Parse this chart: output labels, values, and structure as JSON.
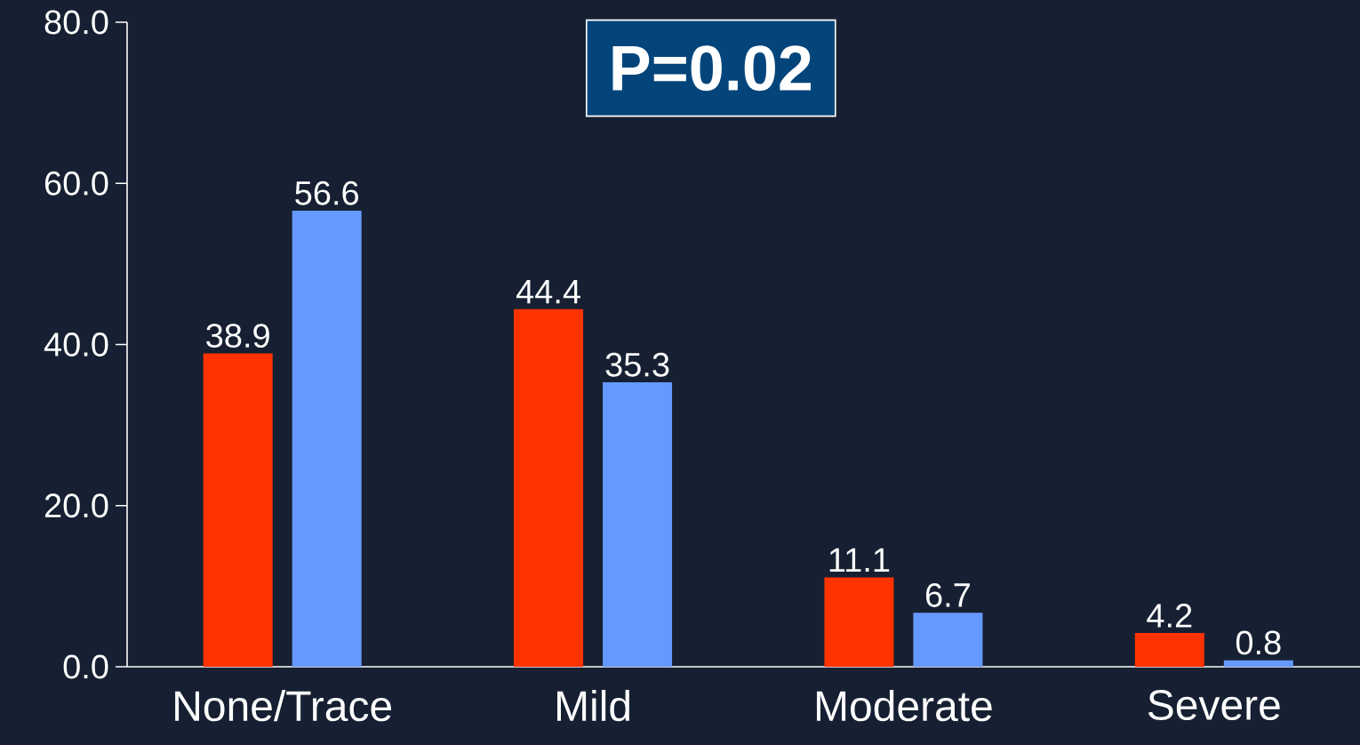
{
  "chart_data": {
    "type": "bar",
    "categories": [
      "None/Trace",
      "Mild",
      "Moderate",
      "Severe"
    ],
    "series": [
      {
        "color": "#ff3300",
        "values": [
          38.9,
          44.4,
          11.1,
          4.2
        ]
      },
      {
        "color": "#6699ff",
        "values": [
          56.6,
          35.3,
          6.7,
          0.8
        ]
      }
    ],
    "ylim": [
      0,
      80
    ],
    "yticks": [
      {
        "value": 0,
        "label": "0.0"
      },
      {
        "value": 20,
        "label": "20.0"
      },
      {
        "value": 40,
        "label": "40.0"
      },
      {
        "value": 60,
        "label": "60.0"
      },
      {
        "value": 80,
        "label": "80.0"
      }
    ],
    "data_labels": true,
    "annotations": [
      "P=0.02"
    ]
  }
}
